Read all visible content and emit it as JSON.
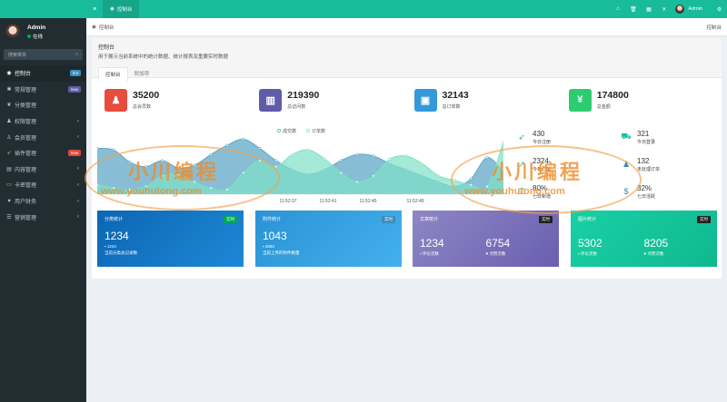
{
  "sidebar": {
    "user": {
      "name": "Admin",
      "status": "在线"
    },
    "search_placeholder": "搜索菜单",
    "items": [
      {
        "label": "控制台",
        "icon": "dashboard-icon",
        "glyph": "◉",
        "badge": "hot",
        "badge_color": "#3c8dbc",
        "chevron": false,
        "active": true
      },
      {
        "label": "常规管理",
        "icon": "cogs-icon",
        "glyph": "✱",
        "badge": "new",
        "badge_color": "#605ca8",
        "chevron": false,
        "active": false
      },
      {
        "label": "分类管理",
        "icon": "leaf-icon",
        "glyph": "❦",
        "badge": "",
        "badge_color": "",
        "chevron": false,
        "active": false
      },
      {
        "label": "权限管理",
        "icon": "group-icon",
        "glyph": "♟",
        "badge": "",
        "badge_color": "",
        "chevron": true,
        "active": false
      },
      {
        "label": "会员管理",
        "icon": "users-icon",
        "glyph": "♙",
        "badge": "",
        "badge_color": "",
        "chevron": true,
        "active": false
      },
      {
        "label": "插件管理",
        "icon": "rocket-icon",
        "glyph": "➶",
        "badge": "new",
        "badge_color": "#dd4b39",
        "chevron": false,
        "active": false
      },
      {
        "label": "内容管理",
        "icon": "file-icon",
        "glyph": "▤",
        "badge": "",
        "badge_color": "",
        "chevron": true,
        "active": false
      },
      {
        "label": "卡密管理",
        "icon": "credit-card-icon",
        "glyph": "▭",
        "badge": "",
        "badge_color": "",
        "chevron": true,
        "active": false
      },
      {
        "label": "用户财务",
        "icon": "heart-icon",
        "glyph": "♥",
        "badge": "",
        "badge_color": "",
        "chevron": true,
        "active": false
      },
      {
        "label": "营销管理",
        "icon": "bars-icon",
        "glyph": "☰",
        "badge": "",
        "badge_color": "",
        "chevron": true,
        "active": false
      }
    ]
  },
  "navbar": {
    "tab_label": "控制台",
    "admin_label": "Admin"
  },
  "breadcrumb": {
    "left": "控制台",
    "right": "控制台"
  },
  "panel": {
    "title": "控制台",
    "description": "用于展示当前系统中的统计数据、统计报表及重要实时数据",
    "tabs": [
      "控制台",
      "附加项"
    ]
  },
  "stats": [
    {
      "value": "35200",
      "label": "总会员数",
      "color": "#e74c3c",
      "icon": "users-icon",
      "glyph": "♟"
    },
    {
      "value": "219390",
      "label": "总访问数",
      "color": "#605ca8",
      "icon": "book-icon",
      "glyph": "▥"
    },
    {
      "value": "32143",
      "label": "总订单数",
      "color": "#3498db",
      "icon": "shopping-bag-icon",
      "glyph": "▣"
    },
    {
      "value": "174800",
      "label": "总金额",
      "color": "#2ecc71",
      "icon": "yen-icon",
      "glyph": "¥"
    }
  ],
  "chart_data": {
    "type": "area",
    "title": "",
    "legend": [
      "成交数",
      "订单数"
    ],
    "legend_position": "top-center",
    "x_ticks": [
      "11:52:37",
      "11:52:41",
      "11:52:45",
      "11:52:49"
    ],
    "series": [
      {
        "name": "成交数",
        "color": "#5fa8c7",
        "values": [
          1500,
          1450,
          1050,
          900,
          1100,
          850,
          950,
          1300,
          1600,
          1800,
          1500,
          1100,
          800,
          650,
          800,
          1100,
          1300,
          1250,
          1000,
          800,
          600,
          400,
          250,
          500,
          1200,
          700
        ]
      },
      {
        "name": "订单数",
        "color": "#7fe0c6",
        "values": [
          300,
          200,
          150,
          250,
          600,
          650,
          400,
          200,
          150,
          700,
          1100,
          900,
          1300,
          1450,
          1150,
          700,
          400,
          600,
          1150,
          1250,
          1000,
          600,
          450,
          300,
          250,
          1700
        ]
      }
    ],
    "ylim": [
      0,
      1900
    ],
    "grid": false
  },
  "side_stats": [
    {
      "value": "430",
      "label": "今日注册",
      "icon": "rocket-icon",
      "glyph": "➶",
      "color": "#18bc9c"
    },
    {
      "value": "321",
      "label": "今日登录",
      "icon": "cart-icon",
      "glyph": "⛟",
      "color": "#18bc9c"
    },
    {
      "value": "2324",
      "label": "今日订单",
      "icon": "line-chart-icon",
      "glyph": "↗",
      "color": "#18bc9c"
    },
    {
      "value": "132",
      "label": "未处理订单",
      "icon": "users-icon",
      "glyph": "♟",
      "color": "#3c8dbc"
    },
    {
      "value": "80%",
      "label": "七日新增",
      "icon": "check-icon",
      "glyph": "☑",
      "color": "#18bc9c"
    },
    {
      "value": "32%",
      "label": "七日活跃",
      "icon": "dollar-icon",
      "glyph": "$",
      "color": "#3c8dbc"
    }
  ],
  "cards": [
    {
      "title": "分类统计",
      "tag": "实时",
      "tag_bg": "#00a65a",
      "big": "1234",
      "sub_value": "1234",
      "sub_label": "当前分类总记录数",
      "colors": [
        "#0b66b3",
        "#1e88d6"
      ]
    },
    {
      "title": "附件统计",
      "tag": "实时",
      "tag_bg": "#3c8dbc",
      "big": "1043",
      "sub_value": "2592",
      "sub_label": "当前上传的附件数量",
      "colors": [
        "#2a93d5",
        "#43b0ee"
      ]
    },
    {
      "title": "文章统计",
      "tag": "实时",
      "tag_bg": "#222",
      "left_value": "1234",
      "left_label": "评论次数",
      "right_value": "6754",
      "right_label": "点赞次数",
      "colors": [
        "#8e86c4",
        "#6a5fb0"
      ]
    },
    {
      "title": "图片统计",
      "tag": "实时",
      "tag_bg": "#222",
      "left_value": "5302",
      "left_label": "评论次数",
      "right_value": "8205",
      "right_label": "点赞次数",
      "colors": [
        "#19d0a5",
        "#0fb88f"
      ]
    }
  ],
  "watermark": {
    "cn": "小川编程",
    "url": "www.youhutong.com"
  }
}
